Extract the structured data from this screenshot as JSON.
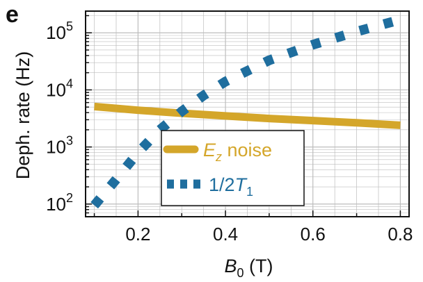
{
  "panel_letter": "e",
  "colors": {
    "ez_noise": "#D4A62A",
    "t1": "#1F6E9E",
    "grid": "#BDBDBD",
    "axis": "#111111"
  },
  "chart_data": {
    "type": "line",
    "xlabel": "B0 (T)",
    "xlabel_parts": {
      "base": "B",
      "sub": "0",
      "unit": " (T)"
    },
    "ylabel": "Deph. rate (Hz)",
    "y_scale": "log",
    "xlim": [
      0.08,
      0.82
    ],
    "ylim": [
      60,
      240000
    ],
    "grid": true,
    "legend_position": "lower-right",
    "x_ticks": [
      {
        "value": 0.2,
        "label": "0.2"
      },
      {
        "value": 0.4,
        "label": "0.4"
      },
      {
        "value": 0.6,
        "label": "0.6"
      },
      {
        "value": 0.8,
        "label": "0.8"
      }
    ],
    "y_ticks": [
      {
        "value": 100,
        "base": "10",
        "exp": "2"
      },
      {
        "value": 1000,
        "base": "10",
        "exp": "3"
      },
      {
        "value": 10000,
        "base": "10",
        "exp": "4"
      },
      {
        "value": 100000,
        "base": "10",
        "exp": "5"
      }
    ],
    "series": [
      {
        "name": "Ez noise",
        "legend": {
          "main": "E",
          "sub": "z",
          "rest": " noise"
        },
        "style": "solid-thick",
        "color": "#D4A62A",
        "x": [
          0.1,
          0.2,
          0.3,
          0.4,
          0.5,
          0.6,
          0.7,
          0.8
        ],
        "y": [
          5100,
          4400,
          3900,
          3500,
          3150,
          2900,
          2650,
          2400
        ]
      },
      {
        "name": "1/2T1",
        "legend": {
          "main": "1/2",
          "italic": "T",
          "sub": "1"
        },
        "style": "dotted",
        "color": "#1F6E9E",
        "x": [
          0.1,
          0.15,
          0.2,
          0.25,
          0.3,
          0.35,
          0.4,
          0.5,
          0.6,
          0.7,
          0.8
        ],
        "y": [
          95,
          270,
          800,
          2000,
          4200,
          8000,
          14000,
          33000,
          62000,
          105000,
          170000
        ]
      }
    ]
  }
}
